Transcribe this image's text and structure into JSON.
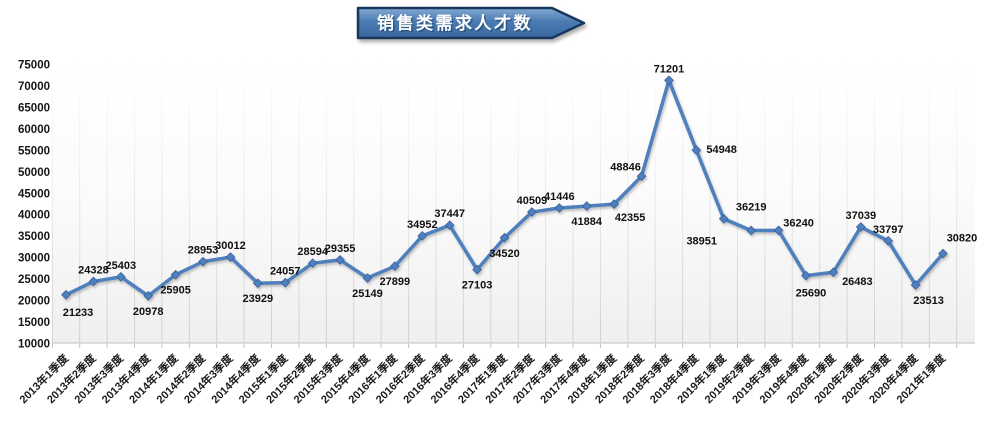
{
  "title": {
    "text": "销售类需求人才数"
  },
  "chart_data": {
    "type": "line",
    "title": "销售类需求人才数",
    "categories": [
      "2013年1季度",
      "2013年2季度",
      "2013年3季度",
      "2013年4季度",
      "2014年1季度",
      "2014年2季度",
      "2014年3季度",
      "2014年4季度",
      "2015年1季度",
      "2015年2季度",
      "2015年3季度",
      "2015年4季度",
      "2016年1季度",
      "2016年2季度",
      "2016年3季度",
      "2016年4季度",
      "2017年1季度",
      "2017年2季度",
      "2017年3季度",
      "2017年4季度",
      "2018年1季度",
      "2018年2季度",
      "2018年3季度",
      "2018年4季度",
      "2019年1季度",
      "2019年2季度",
      "2019年3季度",
      "2019年4季度",
      "2020年1季度",
      "2020年2季度",
      "2020年3季度",
      "2020年4季度",
      "2021年1季度"
    ],
    "values": [
      21233,
      24328,
      25403,
      20978,
      25905,
      28953,
      30012,
      23929,
      24057,
      28594,
      29355,
      25149,
      27899,
      34952,
      37447,
      27103,
      34520,
      40509,
      41446,
      41884,
      42355,
      48846,
      71201,
      54948,
      38951,
      36219,
      36240,
      25690,
      26483,
      37039,
      33797,
      23513,
      30820
    ],
    "xlabel": "",
    "ylabel": "",
    "ylim": [
      10000,
      75000
    ],
    "ytick_step": 5000,
    "yticks": [
      10000,
      15000,
      20000,
      25000,
      30000,
      35000,
      40000,
      45000,
      50000,
      55000,
      60000,
      65000,
      70000,
      75000
    ],
    "grid": "vertical-only",
    "legend": "none",
    "marker": "diamond",
    "line_color": "#4E80BC",
    "marker_edge_color": "#38619B",
    "data_labels_shown": true,
    "label_positions": [
      "below",
      "above",
      "above",
      "below",
      "below",
      "above",
      "above",
      "below",
      "above",
      "above",
      "above",
      "below",
      "below",
      "above",
      "above",
      "below",
      "below",
      "above",
      "above",
      "below",
      "below",
      "above",
      "above",
      "right",
      "below",
      "above",
      "above",
      "below",
      "below",
      "above",
      "above",
      "below",
      "above"
    ],
    "label_offsets": {
      "0": {
        "dx": 12,
        "dy": 21
      },
      "20": {
        "dx": 16,
        "dy": 17
      },
      "21": {
        "dx": -16,
        "dy": -6
      },
      "23": {
        "dx": 10,
        "dy": 3
      },
      "24": {
        "dx": -22,
        "dy": 26
      },
      "25": {
        "dx": 0,
        "dy": -20
      },
      "26": {
        "dx": 20,
        "dy": -4
      },
      "27": {
        "dx": 5,
        "dy": 21
      },
      "28": {
        "dx": 24,
        "dy": 13
      },
      "31": {
        "dx": 13,
        "dy": 19
      },
      "32": {
        "dx": 19,
        "dy": -12
      }
    }
  },
  "style_colors": {
    "banner_fill_top": "#84AAD4",
    "banner_fill_mid": "#4A7BB2",
    "banner_fill_bottom": "#3A689E",
    "banner_border": "#17375E",
    "banner_text": "#FFFFFF",
    "axis_line": "#BFBFBF",
    "gridline": "#D8D8D8",
    "axis_text": "#1C1C1C",
    "data_label_text": "#101010"
  }
}
